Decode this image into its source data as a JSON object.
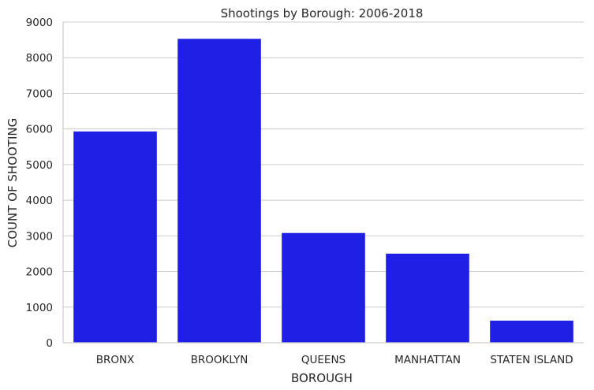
{
  "chart_data": {
    "type": "bar",
    "title": "Shootings by Borough: 2006-2018",
    "xlabel": "BOROUGH",
    "ylabel": "COUNT OF SHOOTING",
    "categories": [
      "BRONX",
      "BROOKLYN",
      "QUEENS",
      "MANHATTAN",
      "STATEN ISLAND"
    ],
    "values": [
      5930,
      8530,
      3080,
      2500,
      620
    ],
    "ylim": [
      0,
      9000
    ],
    "yticks": [
      "0",
      "1000",
      "2000",
      "3000",
      "4000",
      "5000",
      "6000",
      "7000",
      "8000",
      "9000"
    ],
    "bar_color": "#1f1fe5",
    "grid": "horizontal",
    "style": "whitegrid"
  }
}
